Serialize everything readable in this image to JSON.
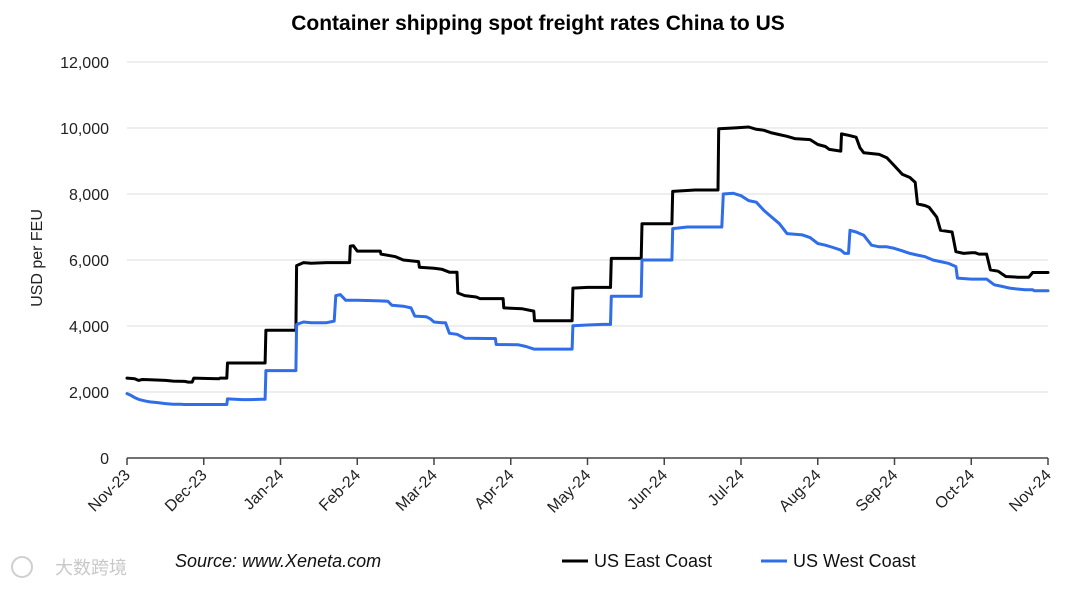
{
  "chart_data": {
    "type": "line",
    "title": "Container shipping spot freight rates China to US",
    "ylabel": "USD per FEU",
    "xlabel": "",
    "ylim": [
      0,
      12000
    ],
    "yticks": [
      0,
      2000,
      4000,
      6000,
      8000,
      10000,
      12000
    ],
    "ytick_labels": [
      "0",
      "2,000",
      "4,000",
      "6,000",
      "8,000",
      "10,000",
      "12,000"
    ],
    "xlim": [
      0,
      12
    ],
    "x_tick_labels": [
      "Nov-23",
      "Dec-23",
      "Jan-24",
      "Feb-24",
      "Mar-24",
      "Apr-24",
      "May-24",
      "Jun-24",
      "Jul-24",
      "Aug-24",
      "Sep-24",
      "Oct-24",
      "Nov-24"
    ],
    "grid": "horizontal",
    "legend_position": "bottom",
    "source": "Source: www.Xeneta.com",
    "watermark": "大数跨境",
    "colors": {
      "east": "#000000",
      "west": "#2f6ee8",
      "grid": "#dddddd",
      "axis": "#444444"
    },
    "series": [
      {
        "name": "US East Coast",
        "color": "#000000",
        "points": [
          [
            0.0,
            2420
          ],
          [
            0.1,
            2400
          ],
          [
            0.15,
            2350
          ],
          [
            0.2,
            2380
          ],
          [
            0.3,
            2370
          ],
          [
            0.5,
            2350
          ],
          [
            0.6,
            2330
          ],
          [
            0.75,
            2320
          ],
          [
            0.8,
            2300
          ],
          [
            0.85,
            2300
          ],
          [
            0.87,
            2420
          ],
          [
            1.05,
            2410
          ],
          [
            1.2,
            2400
          ],
          [
            1.21,
            2420
          ],
          [
            1.3,
            2420
          ],
          [
            1.31,
            2880
          ],
          [
            1.55,
            2880
          ],
          [
            1.8,
            2880
          ],
          [
            1.81,
            3870
          ],
          [
            2.2,
            3870
          ],
          [
            2.21,
            5830
          ],
          [
            2.3,
            5920
          ],
          [
            2.4,
            5900
          ],
          [
            2.6,
            5920
          ],
          [
            2.9,
            5920
          ],
          [
            2.91,
            6420
          ],
          [
            2.95,
            6430
          ],
          [
            3.0,
            6270
          ],
          [
            3.3,
            6270
          ],
          [
            3.31,
            6180
          ],
          [
            3.5,
            6100
          ],
          [
            3.6,
            6000
          ],
          [
            3.8,
            5950
          ],
          [
            3.81,
            5780
          ],
          [
            4.0,
            5750
          ],
          [
            4.1,
            5720
          ],
          [
            4.2,
            5630
          ],
          [
            4.3,
            5630
          ],
          [
            4.31,
            5000
          ],
          [
            4.4,
            4920
          ],
          [
            4.55,
            4880
          ],
          [
            4.6,
            4830
          ],
          [
            4.9,
            4830
          ],
          [
            4.91,
            4550
          ],
          [
            5.15,
            4520
          ],
          [
            5.3,
            4450
          ],
          [
            5.31,
            4160
          ],
          [
            5.8,
            4160
          ],
          [
            5.81,
            5150
          ],
          [
            6.0,
            5170
          ],
          [
            6.2,
            5170
          ],
          [
            6.3,
            5170
          ],
          [
            6.31,
            6050
          ],
          [
            6.7,
            6050
          ],
          [
            6.71,
            7100
          ],
          [
            7.1,
            7100
          ],
          [
            7.11,
            8080
          ],
          [
            7.4,
            8120
          ],
          [
            7.7,
            8120
          ],
          [
            7.71,
            9980
          ],
          [
            7.9,
            10000
          ],
          [
            8.1,
            10030
          ],
          [
            8.2,
            9960
          ],
          [
            8.3,
            9930
          ],
          [
            8.4,
            9850
          ],
          [
            8.5,
            9800
          ],
          [
            8.6,
            9750
          ],
          [
            8.7,
            9680
          ],
          [
            8.9,
            9650
          ],
          [
            9.0,
            9500
          ],
          [
            9.1,
            9440
          ],
          [
            9.15,
            9350
          ],
          [
            9.3,
            9300
          ],
          [
            9.31,
            9820
          ],
          [
            9.4,
            9780
          ],
          [
            9.5,
            9720
          ],
          [
            9.55,
            9400
          ],
          [
            9.6,
            9250
          ],
          [
            9.8,
            9200
          ],
          [
            9.9,
            9100
          ],
          [
            10.0,
            8850
          ],
          [
            10.1,
            8600
          ],
          [
            10.2,
            8500
          ],
          [
            10.27,
            8350
          ],
          [
            10.3,
            7700
          ],
          [
            10.4,
            7650
          ],
          [
            10.45,
            7600
          ],
          [
            10.55,
            7300
          ],
          [
            10.6,
            6900
          ],
          [
            10.75,
            6850
          ],
          [
            10.8,
            6250
          ],
          [
            10.9,
            6200
          ],
          [
            11.0,
            6220
          ],
          [
            11.05,
            6220
          ],
          [
            11.1,
            6180
          ],
          [
            11.2,
            6180
          ],
          [
            11.25,
            5700
          ],
          [
            11.35,
            5660
          ],
          [
            11.45,
            5500
          ],
          [
            11.6,
            5480
          ],
          [
            11.75,
            5480
          ],
          [
            11.8,
            5620
          ],
          [
            12.0,
            5620
          ]
        ]
      },
      {
        "name": "US West Coast",
        "color": "#2f6ee8",
        "points": [
          [
            0.0,
            1950
          ],
          [
            0.05,
            1900
          ],
          [
            0.1,
            1830
          ],
          [
            0.15,
            1780
          ],
          [
            0.2,
            1750
          ],
          [
            0.25,
            1720
          ],
          [
            0.3,
            1700
          ],
          [
            0.4,
            1680
          ],
          [
            0.5,
            1650
          ],
          [
            0.6,
            1630
          ],
          [
            0.7,
            1630
          ],
          [
            0.75,
            1620
          ],
          [
            0.9,
            1620
          ],
          [
            1.0,
            1620
          ],
          [
            1.3,
            1620
          ],
          [
            1.31,
            1790
          ],
          [
            1.5,
            1770
          ],
          [
            1.6,
            1770
          ],
          [
            1.75,
            1780
          ],
          [
            1.8,
            1780
          ],
          [
            1.81,
            2650
          ],
          [
            2.2,
            2650
          ],
          [
            2.21,
            4050
          ],
          [
            2.3,
            4120
          ],
          [
            2.4,
            4100
          ],
          [
            2.6,
            4100
          ],
          [
            2.7,
            4150
          ],
          [
            2.72,
            4920
          ],
          [
            2.78,
            4950
          ],
          [
            2.85,
            4780
          ],
          [
            3.0,
            4780
          ],
          [
            3.3,
            4760
          ],
          [
            3.4,
            4750
          ],
          [
            3.45,
            4630
          ],
          [
            3.6,
            4600
          ],
          [
            3.7,
            4550
          ],
          [
            3.75,
            4300
          ],
          [
            3.9,
            4280
          ],
          [
            3.95,
            4220
          ],
          [
            4.0,
            4120
          ],
          [
            4.1,
            4100
          ],
          [
            4.15,
            4100
          ],
          [
            4.2,
            3780
          ],
          [
            4.3,
            3750
          ],
          [
            4.4,
            3630
          ],
          [
            4.7,
            3620
          ],
          [
            4.8,
            3620
          ],
          [
            4.81,
            3440
          ],
          [
            5.1,
            3430
          ],
          [
            5.2,
            3380
          ],
          [
            5.3,
            3300
          ],
          [
            5.6,
            3300
          ],
          [
            5.8,
            3300
          ],
          [
            5.81,
            4010
          ],
          [
            6.0,
            4030
          ],
          [
            6.2,
            4050
          ],
          [
            6.3,
            4050
          ],
          [
            6.31,
            4900
          ],
          [
            6.7,
            4900
          ],
          [
            6.71,
            6000
          ],
          [
            7.1,
            6000
          ],
          [
            7.11,
            6950
          ],
          [
            7.3,
            7000
          ],
          [
            7.6,
            7000
          ],
          [
            7.75,
            7000
          ],
          [
            7.77,
            8000
          ],
          [
            7.9,
            8020
          ],
          [
            8.0,
            7950
          ],
          [
            8.1,
            7800
          ],
          [
            8.2,
            7750
          ],
          [
            8.3,
            7500
          ],
          [
            8.4,
            7300
          ],
          [
            8.5,
            7100
          ],
          [
            8.6,
            6800
          ],
          [
            8.8,
            6760
          ],
          [
            8.9,
            6680
          ],
          [
            9.0,
            6500
          ],
          [
            9.1,
            6450
          ],
          [
            9.2,
            6380
          ],
          [
            9.3,
            6300
          ],
          [
            9.35,
            6200
          ],
          [
            9.4,
            6200
          ],
          [
            9.42,
            6900
          ],
          [
            9.5,
            6850
          ],
          [
            9.6,
            6750
          ],
          [
            9.7,
            6450
          ],
          [
            9.8,
            6400
          ],
          [
            9.9,
            6400
          ],
          [
            10.0,
            6350
          ],
          [
            10.1,
            6280
          ],
          [
            10.2,
            6200
          ],
          [
            10.3,
            6150
          ],
          [
            10.4,
            6100
          ],
          [
            10.5,
            6000
          ],
          [
            10.6,
            5950
          ],
          [
            10.7,
            5900
          ],
          [
            10.8,
            5800
          ],
          [
            10.82,
            5450
          ],
          [
            11.0,
            5420
          ],
          [
            11.2,
            5420
          ],
          [
            11.3,
            5250
          ],
          [
            11.4,
            5200
          ],
          [
            11.5,
            5150
          ],
          [
            11.6,
            5120
          ],
          [
            11.7,
            5100
          ],
          [
            11.8,
            5100
          ],
          [
            11.82,
            5070
          ],
          [
            12.0,
            5070
          ]
        ]
      }
    ]
  }
}
